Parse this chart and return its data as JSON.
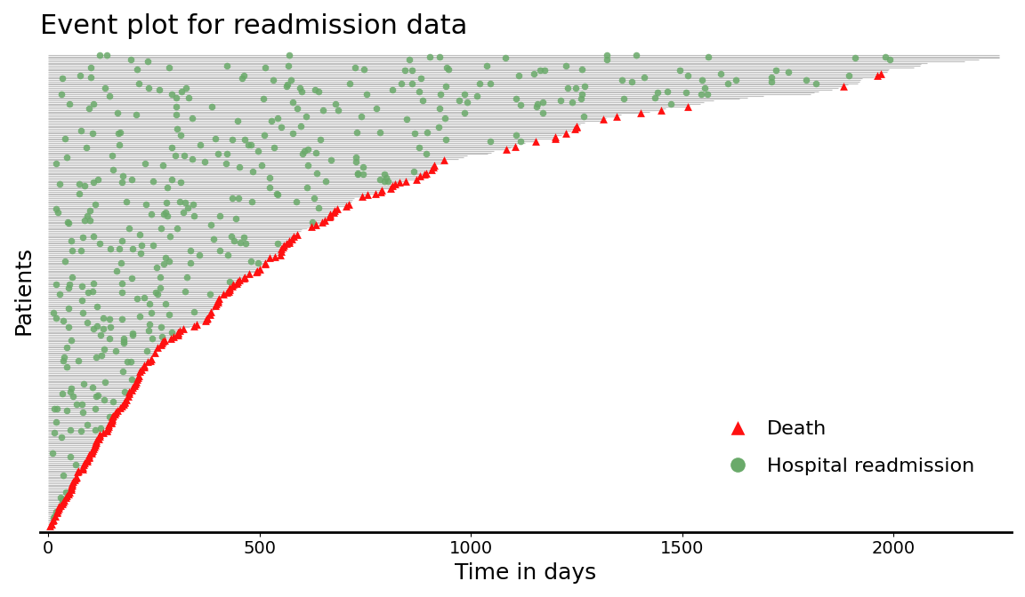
{
  "title": "Event plot for readmission data",
  "xlabel": "Time in days",
  "ylabel": "Patients",
  "n_patients": 300,
  "max_follow_up": 2250,
  "xlim": [
    -20,
    2280
  ],
  "bg_color": "#ffffff",
  "line_color": "#c0c0c0",
  "death_color": "#ff1111",
  "readmission_color": "#6aaa6a",
  "title_fontsize": 22,
  "label_fontsize": 18,
  "legend_fontsize": 16,
  "tick_fontsize": 14,
  "seed": 42
}
